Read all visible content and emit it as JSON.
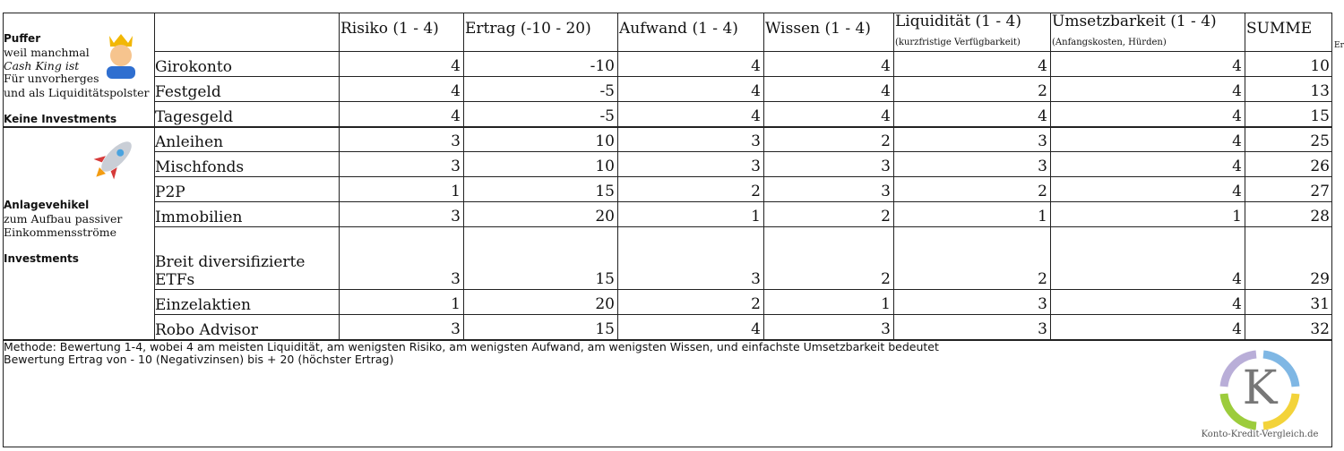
{
  "groups": [
    {
      "lines": [
        {
          "text": "Puffer",
          "style": "bold"
        },
        {
          "text": "weil manchmal",
          "style": "normal"
        },
        {
          "text": "Cash King ist",
          "style": "italic"
        },
        {
          "text": "Für unvorherges",
          "style": "normal"
        },
        {
          "text": "und als Liquiditätspolster",
          "style": "normal"
        },
        {
          "text": "Keine Investments",
          "style": "bold"
        }
      ]
    },
    {
      "lines": [
        {
          "text": "Anlagevehikel",
          "style": "bold"
        },
        {
          "text": "zum Aufbau passiver",
          "style": "normal"
        },
        {
          "text": "Einkommensströme",
          "style": "normal"
        },
        {
          "text": "Investments",
          "style": "bold"
        }
      ]
    }
  ],
  "header": [
    {
      "label": "Risiko (1 - 4)"
    },
    {
      "label": "Ertrag (-10 - 20)"
    },
    {
      "label": "Aufwand (1 - 4)"
    },
    {
      "label": "Wissen (1 - 4)"
    },
    {
      "label": "Liquidität (1 - 4)",
      "sublabel": "(kurzfristige Verfügbarkeit)"
    },
    {
      "label": "Umsetzbarkeit (1 - 4)",
      "sublabel": "(Anfangskosten, Hürden)"
    },
    {
      "label": "SUMME"
    }
  ],
  "overflow_text": "Er",
  "rows": [
    {
      "name": "Girokonto",
      "values": [
        "4",
        "-10",
        "4",
        "4",
        "4",
        "4",
        "10"
      ]
    },
    {
      "name": "Festgeld",
      "values": [
        "4",
        "-5",
        "4",
        "4",
        "2",
        "4",
        "13"
      ]
    },
    {
      "name": "Tagesgeld",
      "values": [
        "4",
        "-5",
        "4",
        "4",
        "4",
        "4",
        "15"
      ]
    },
    {
      "name": "Anleihen",
      "values": [
        "3",
        "10",
        "3",
        "2",
        "3",
        "4",
        "25"
      ]
    },
    {
      "name": "Mischfonds",
      "values": [
        "3",
        "10",
        "3",
        "3",
        "3",
        "4",
        "26"
      ]
    },
    {
      "name": "P2P",
      "values": [
        "1",
        "15",
        "2",
        "3",
        "2",
        "4",
        "27"
      ]
    },
    {
      "name": "Immobilien",
      "values": [
        "3",
        "20",
        "1",
        "2",
        "1",
        "1",
        "28"
      ]
    },
    {
      "name": "Breit diversifizierte ETFs",
      "values": [
        "3",
        "15",
        "3",
        "2",
        "2",
        "4",
        "29"
      ]
    },
    {
      "name": "Einzelaktien",
      "values": [
        "1",
        "20",
        "2",
        "1",
        "3",
        "4",
        "31"
      ]
    },
    {
      "name": "Robo Advisor",
      "values": [
        "3",
        "15",
        "4",
        "3",
        "3",
        "4",
        "32"
      ]
    }
  ],
  "notes": [
    "Methode: Bewertung 1-4, wobei 4 am meisten Liquidität, am wenigsten Risiko, am wenigsten Aufwand, am wenigsten Wissen, und einfachste Umsetzbarkeit bedeutet",
    "Bewertung Ertrag von - 10 (Negativzinsen) bis + 20 (höchster Ertrag)"
  ],
  "logo": {
    "letter": "K",
    "caption": "Konto-Kredit-Vergleich.de"
  }
}
